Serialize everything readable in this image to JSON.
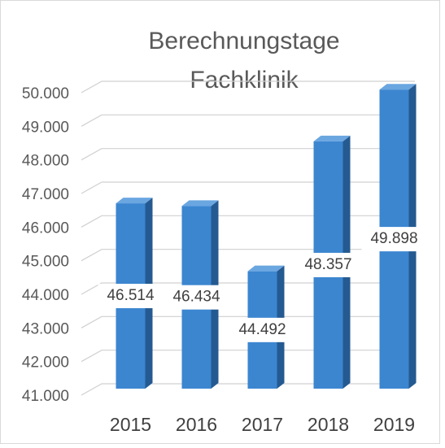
{
  "chart_data": {
    "type": "bar",
    "title": [
      "Berechnungstage",
      "Fachklinik"
    ],
    "categories": [
      "2015",
      "2016",
      "2017",
      "2018",
      "2019"
    ],
    "values": [
      46514,
      46434,
      44492,
      48357,
      49898
    ],
    "value_labels": [
      "46.514",
      "46.434",
      "44.492",
      "48.357",
      "49.898"
    ],
    "color": "#3c86d0",
    "ylim": [
      41000,
      50000
    ],
    "yticks": [
      {
        "value": 41000,
        "label": "41.000"
      },
      {
        "value": 42000,
        "label": "42.000"
      },
      {
        "value": 43000,
        "label": "43.000"
      },
      {
        "value": 44000,
        "label": "44.000"
      },
      {
        "value": 45000,
        "label": "45.000"
      },
      {
        "value": 46000,
        "label": "46.000"
      },
      {
        "value": 47000,
        "label": "47.000"
      },
      {
        "value": 48000,
        "label": "48.000"
      },
      {
        "value": 49000,
        "label": "49.000"
      },
      {
        "value": 50000,
        "label": "50.000"
      }
    ],
    "grid": true
  }
}
